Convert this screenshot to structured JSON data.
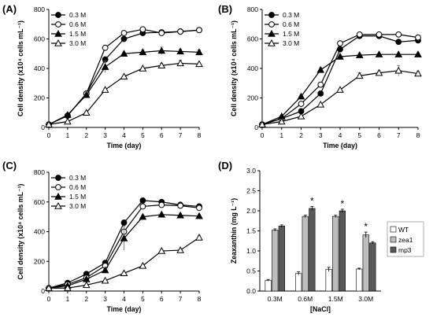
{
  "figure": {
    "panel_labels": [
      "(A)",
      "(B)",
      "(C)",
      "(D)"
    ]
  },
  "chart_data": [
    {
      "panel": "(A)",
      "type": "line",
      "xlabel": "Time (day)",
      "ylabel": "Cell density (x10⁴ cells mL⁻¹)",
      "xlim": [
        0,
        8
      ],
      "ylim": [
        0,
        800
      ],
      "xticks": [
        "0",
        "1",
        "2",
        "3",
        "4",
        "5",
        "6",
        "7",
        "8"
      ],
      "yticks": [
        "0",
        "200",
        "400",
        "600",
        "800"
      ],
      "legend_position": "top-left",
      "grid": false,
      "x": [
        0,
        1,
        2,
        3,
        4,
        5,
        6,
        7,
        8
      ],
      "series": [
        {
          "name": "0.3 M",
          "marker": "filled-circle",
          "values": [
            20,
            80,
            230,
            460,
            600,
            640,
            645,
            650,
            660
          ],
          "errors": [
            5,
            6,
            10,
            20,
            15,
            10,
            15,
            15,
            10
          ]
        },
        {
          "name": "0.6 M",
          "marker": "open-circle",
          "values": [
            20,
            80,
            230,
            540,
            640,
            665,
            640,
            650,
            660
          ],
          "errors": [
            5,
            6,
            10,
            15,
            10,
            12,
            20,
            20,
            10
          ]
        },
        {
          "name": "1.5 M",
          "marker": "filled-triangle",
          "values": [
            20,
            85,
            220,
            410,
            500,
            510,
            520,
            515,
            510
          ],
          "errors": [
            5,
            6,
            15,
            40,
            10,
            15,
            25,
            15,
            15
          ]
        },
        {
          "name": "3.0 M",
          "marker": "open-triangle",
          "values": [
            20,
            40,
            100,
            255,
            345,
            400,
            420,
            435,
            430
          ],
          "errors": [
            5,
            4,
            6,
            10,
            10,
            10,
            15,
            20,
            10
          ]
        }
      ]
    },
    {
      "panel": "(B)",
      "type": "line",
      "xlabel": "Time (day)",
      "ylabel": "Cell density (x10⁴ cells mL⁻¹)",
      "xlim": [
        0,
        8
      ],
      "ylim": [
        0,
        800
      ],
      "xticks": [
        "0",
        "1",
        "2",
        "3",
        "4",
        "5",
        "6",
        "7",
        "8"
      ],
      "yticks": [
        "0",
        "200",
        "400",
        "600",
        "800"
      ],
      "legend_position": "top-left",
      "grid": false,
      "x": [
        0,
        1,
        2,
        3,
        4,
        5,
        6,
        7,
        8
      ],
      "series": [
        {
          "name": "0.3 M",
          "marker": "filled-circle",
          "values": [
            20,
            60,
            110,
            230,
            530,
            620,
            620,
            580,
            590
          ],
          "errors": [
            5,
            5,
            8,
            15,
            15,
            15,
            20,
            15,
            10
          ]
        },
        {
          "name": "0.6 M",
          "marker": "open-circle",
          "values": [
            20,
            60,
            160,
            290,
            570,
            630,
            630,
            630,
            610
          ],
          "errors": [
            5,
            5,
            10,
            15,
            15,
            10,
            10,
            15,
            10
          ]
        },
        {
          "name": "1.5 M",
          "marker": "filled-triangle",
          "values": [
            20,
            75,
            210,
            390,
            480,
            490,
            495,
            495,
            495
          ],
          "errors": [
            5,
            5,
            10,
            15,
            10,
            10,
            10,
            10,
            10
          ]
        },
        {
          "name": "3.0 M",
          "marker": "open-triangle",
          "values": [
            20,
            40,
            75,
            155,
            255,
            350,
            370,
            385,
            365
          ],
          "errors": [
            5,
            4,
            5,
            8,
            10,
            20,
            15,
            35,
            15
          ]
        }
      ]
    },
    {
      "panel": "(C)",
      "type": "line",
      "xlabel": "Time (day)",
      "ylabel": "Cell density (x10⁴ cells mL⁻¹)",
      "xlim": [
        0,
        8
      ],
      "ylim": [
        0,
        800
      ],
      "xticks": [
        "0",
        "1",
        "2",
        "3",
        "4",
        "5",
        "6",
        "7",
        "8"
      ],
      "yticks": [
        "0",
        "200",
        "400",
        "600",
        "800"
      ],
      "legend_position": "top-left",
      "grid": false,
      "x": [
        0,
        1,
        2,
        3,
        4,
        5,
        6,
        7,
        8
      ],
      "series": [
        {
          "name": "0.3 M",
          "marker": "filled-circle",
          "values": [
            20,
            55,
            115,
            190,
            460,
            610,
            600,
            580,
            570
          ],
          "errors": [
            5,
            5,
            8,
            10,
            20,
            10,
            15,
            20,
            15
          ]
        },
        {
          "name": "0.6 M",
          "marker": "open-circle",
          "values": [
            20,
            45,
            90,
            170,
            400,
            570,
            580,
            575,
            560
          ],
          "errors": [
            5,
            5,
            6,
            10,
            15,
            10,
            15,
            15,
            15
          ]
        },
        {
          "name": "1.5 M",
          "marker": "filled-triangle",
          "values": [
            20,
            35,
            80,
            140,
            355,
            500,
            515,
            510,
            505
          ],
          "errors": [
            5,
            4,
            6,
            10,
            80,
            10,
            10,
            10,
            10
          ]
        },
        {
          "name": "3.0 M",
          "marker": "open-triangle",
          "values": [
            20,
            20,
            40,
            70,
            120,
            170,
            270,
            275,
            360
          ],
          "errors": [
            5,
            3,
            4,
            6,
            8,
            10,
            10,
            10,
            15
          ]
        }
      ]
    },
    {
      "panel": "(D)",
      "type": "bar",
      "xlabel": "[NaCl]",
      "ylabel": "Zeaxanthin (mg L⁻¹)",
      "ylim": [
        0,
        3.0
      ],
      "yticks": [
        "0.0",
        "0.5",
        "1.0",
        "1.5",
        "2.0",
        "2.5",
        "3.0"
      ],
      "categories": [
        "0.3M",
        "0.6M",
        "1.5M",
        "3.0M"
      ],
      "legend_position": "right",
      "grid": false,
      "series": [
        {
          "name": "WT",
          "color": "#ffffff",
          "values": [
            0.27,
            0.44,
            0.54,
            0.55
          ],
          "errors": [
            0.02,
            0.04,
            0.05,
            0.02
          ]
        },
        {
          "name": "zea1",
          "color": "#bdbdbd",
          "values": [
            1.52,
            1.86,
            1.86,
            1.4
          ],
          "errors": [
            0.03,
            0.03,
            0.03,
            0.07
          ]
        },
        {
          "name": "mp3",
          "color": "#595959",
          "values": [
            1.62,
            2.06,
            2.0,
            1.2
          ],
          "errors": [
            0.03,
            0.05,
            0.04,
            0.03
          ]
        }
      ],
      "annotations": [
        "*",
        "*",
        "*"
      ]
    }
  ]
}
